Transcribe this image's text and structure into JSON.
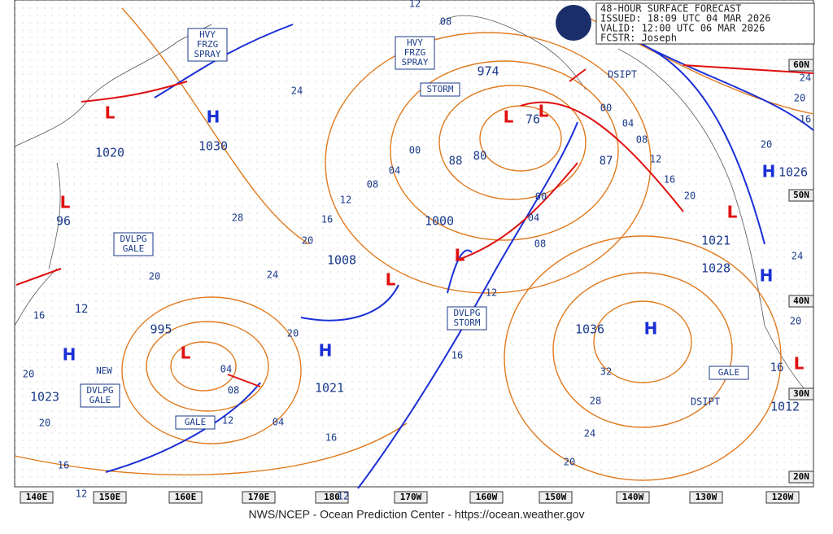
{
  "header": {
    "lines": [
      "48-HOUR SURFACE FORECAST",
      "ISSUED: 18:09 UTC 04 MAR 2026",
      "VALID: 12:00 UTC 06 MAR 2026",
      "FCSTR: Joseph"
    ]
  },
  "footer": "NWS/NCEP - Ocean Prediction Center - https://ocean.weather.gov",
  "longitude_labels": [
    "140E",
    "150E",
    "160E",
    "170E",
    "180",
    "170W",
    "160W",
    "150W",
    "140W",
    "130W",
    "120W"
  ],
  "latitude_labels": [
    "60N",
    "50N",
    "40N",
    "30N",
    "20N"
  ],
  "systems": [
    {
      "symbol": "L",
      "pressure": "1020"
    },
    {
      "symbol": "H",
      "pressure": "1030"
    },
    {
      "symbol": "L",
      "pressure": "96"
    },
    {
      "symbol": "L",
      "pressure": "974"
    },
    {
      "symbol": "L",
      "pressure": "76"
    },
    {
      "symbol": "L",
      "pressure": "1000"
    },
    {
      "symbol": "L",
      "pressure": "1008"
    },
    {
      "symbol": "H",
      "pressure": "1021"
    },
    {
      "symbol": "L",
      "pressure": "995"
    },
    {
      "symbol": "H",
      "pressure": "1023"
    },
    {
      "symbol": "H",
      "pressure": "1036"
    },
    {
      "symbol": "H",
      "pressure": "1026"
    },
    {
      "symbol": "L",
      "pressure": "1021"
    },
    {
      "symbol": "H",
      "pressure": "1028"
    },
    {
      "symbol": "L",
      "pressure": "1012"
    }
  ],
  "extra_labels": [
    "80",
    "88",
    "87",
    "12",
    "16"
  ],
  "isobar_labels": [
    "12",
    "08",
    "24",
    "04",
    "08",
    "12",
    "16",
    "20",
    "24",
    "28",
    "00",
    "00",
    "04",
    "08",
    "12",
    "16",
    "20",
    "04",
    "08",
    "12",
    "04",
    "16",
    "20",
    "16",
    "20",
    "20",
    "16",
    "12",
    "12",
    "20",
    "24",
    "28",
    "32",
    "00",
    "04",
    "08",
    "12",
    "16",
    "20",
    "20",
    "24",
    "20",
    "16",
    "24",
    "20"
  ],
  "warnings": [
    {
      "lines": [
        "HVY",
        "FRZG",
        "SPRAY"
      ]
    },
    {
      "lines": [
        "HVY",
        "FRZG",
        "SPRAY"
      ]
    },
    {
      "lines": [
        "STORM"
      ]
    },
    {
      "lines": [
        "DVLPG",
        "GALE"
      ]
    },
    {
      "lines": [
        "DVLPG",
        "STORM"
      ]
    },
    {
      "lines": [
        "NEW"
      ]
    },
    {
      "lines": [
        "DVLPG",
        "GALE"
      ]
    },
    {
      "lines": [
        "GALE"
      ]
    },
    {
      "lines": [
        "GALE"
      ]
    }
  ],
  "status_labels": [
    "DSIPT",
    "DSIPT"
  ]
}
